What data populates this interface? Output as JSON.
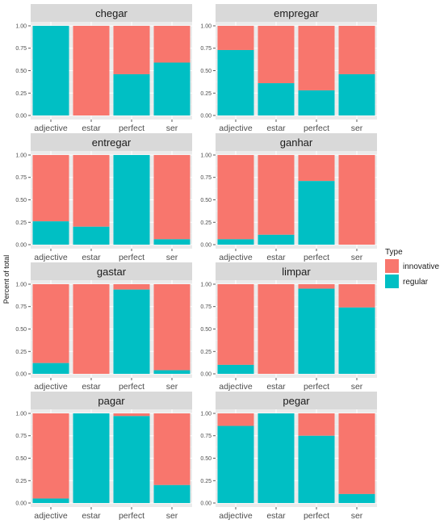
{
  "chart_data": {
    "type": "bar",
    "stacked": true,
    "facets": [
      "chegar",
      "empregar",
      "entregar",
      "ganhar",
      "gastar",
      "limpar",
      "pagar",
      "pegar"
    ],
    "categories": [
      "adjective",
      "estar",
      "perfect",
      "ser"
    ],
    "ylabel": "Percent of total",
    "xlabel": "",
    "ylim": [
      0,
      1
    ],
    "yticks": [
      "0.00",
      "0.25",
      "0.50",
      "0.75",
      "1.00"
    ],
    "grid": true,
    "legend": {
      "title": "Type",
      "placement": "right",
      "items": [
        {
          "name": "innovative",
          "color": "#F8766D"
        },
        {
          "name": "regular",
          "color": "#00BFC4"
        }
      ]
    },
    "series_colors": {
      "innovative": "#F8766D",
      "regular": "#00BFC4"
    },
    "panels": [
      {
        "title": "chegar",
        "regular": [
          1.0,
          0.0,
          0.46,
          0.59
        ]
      },
      {
        "title": "empregar",
        "regular": [
          0.73,
          0.36,
          0.28,
          0.46
        ]
      },
      {
        "title": "entregar",
        "regular": [
          0.26,
          0.2,
          1.0,
          0.06
        ]
      },
      {
        "title": "ganhar",
        "regular": [
          0.06,
          0.11,
          0.71,
          0.0
        ]
      },
      {
        "title": "gastar",
        "regular": [
          0.12,
          0.0,
          0.94,
          0.04
        ]
      },
      {
        "title": "limpar",
        "regular": [
          0.1,
          0.0,
          0.95,
          0.74
        ]
      },
      {
        "title": "pagar",
        "regular": [
          0.05,
          1.0,
          0.97,
          0.2
        ]
      },
      {
        "title": "pegar",
        "regular": [
          0.86,
          1.0,
          0.75,
          0.1
        ]
      }
    ]
  }
}
